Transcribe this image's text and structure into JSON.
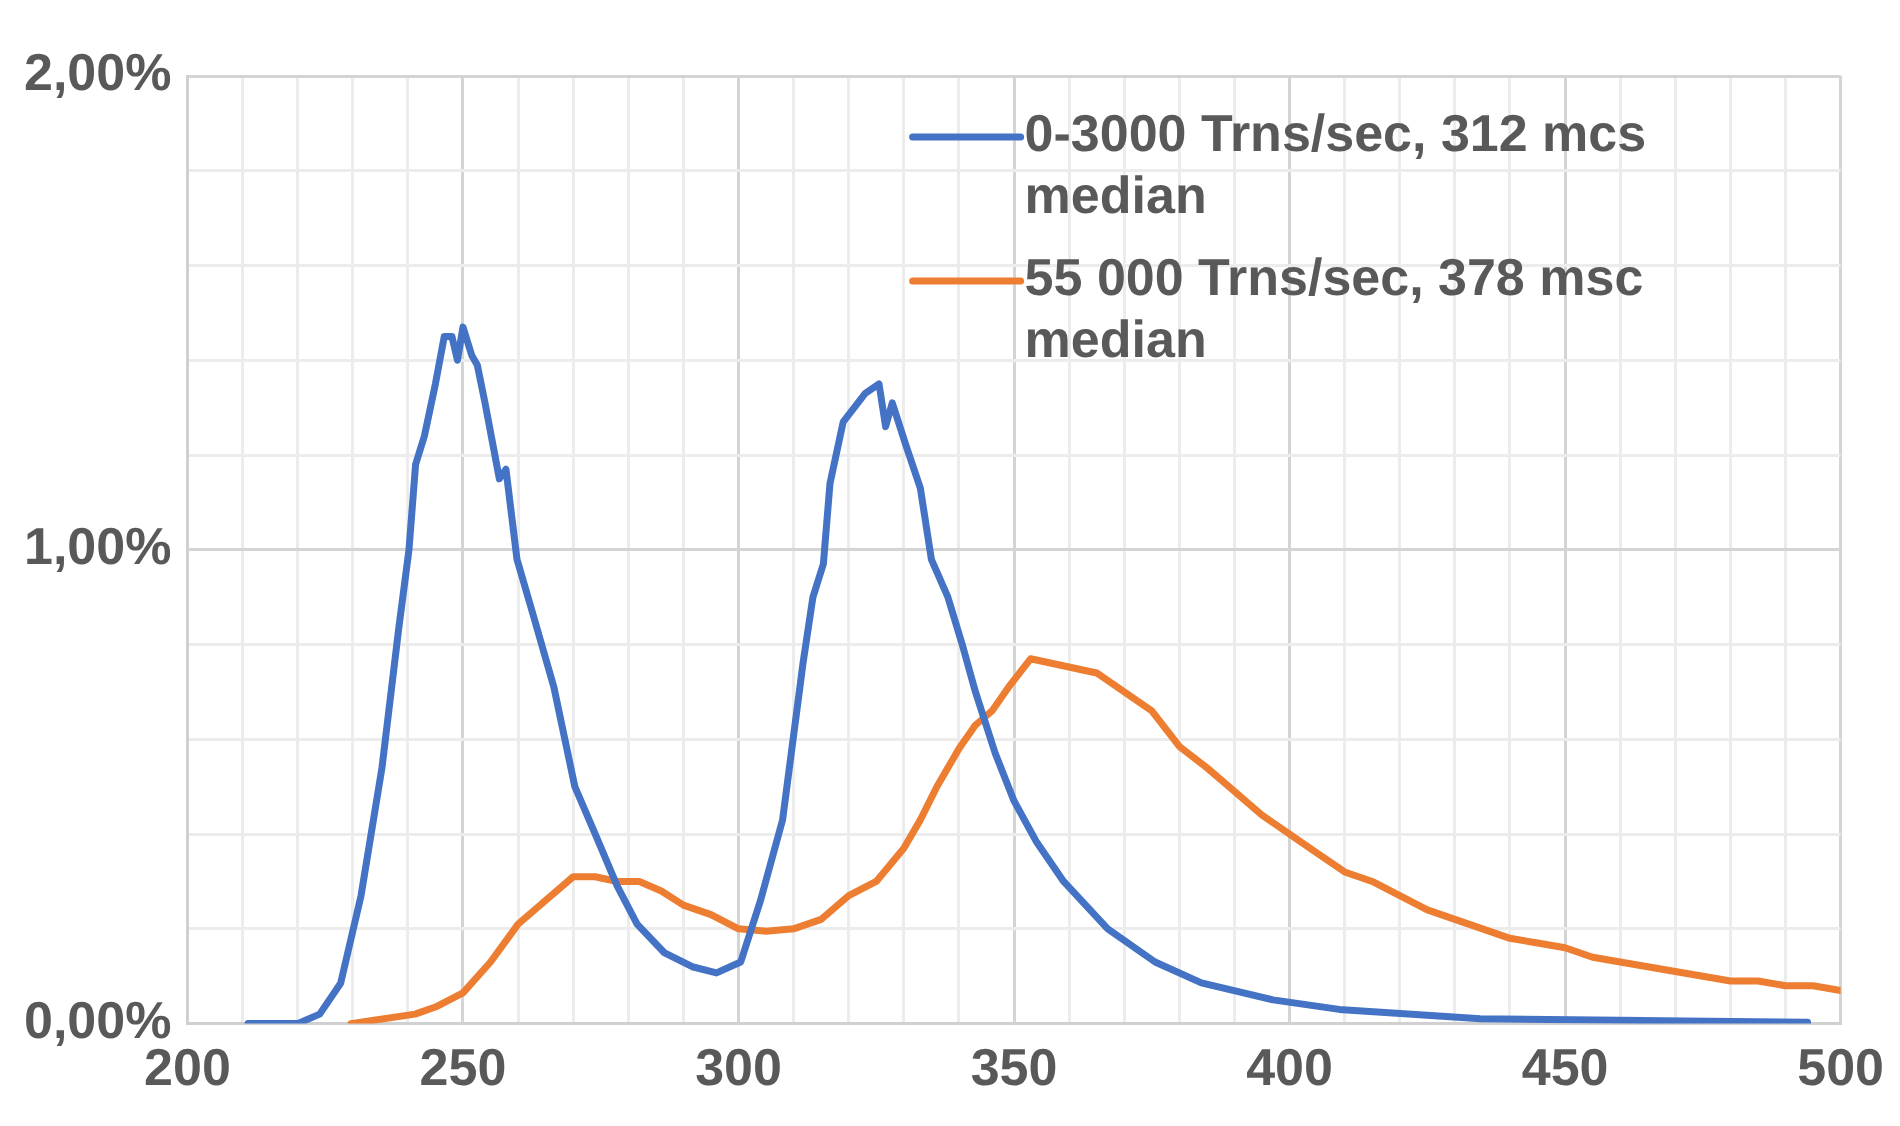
{
  "chart_data": {
    "type": "line",
    "xlim": [
      200,
      500
    ],
    "ylim": [
      0,
      2
    ],
    "xticks": [
      200,
      {
        "value": 210,
        "label": null
      },
      {
        "value": 220,
        "label": null
      },
      {
        "value": 230,
        "label": null
      },
      {
        "value": 240,
        "label": null
      },
      250,
      {
        "value": 260,
        "label": null
      },
      {
        "value": 270,
        "label": null
      },
      {
        "value": 280,
        "label": null
      },
      {
        "value": 290,
        "label": null
      },
      300,
      {
        "value": 310,
        "label": null
      },
      {
        "value": 320,
        "label": null
      },
      {
        "value": 330,
        "label": null
      },
      {
        "value": 340,
        "label": null
      },
      350,
      {
        "value": 360,
        "label": null
      },
      {
        "value": 370,
        "label": null
      },
      {
        "value": 380,
        "label": null
      },
      {
        "value": 390,
        "label": null
      },
      400,
      {
        "value": 410,
        "label": null
      },
      {
        "value": 420,
        "label": null
      },
      {
        "value": 430,
        "label": null
      },
      {
        "value": 440,
        "label": null
      },
      450,
      {
        "value": 460,
        "label": null
      },
      {
        "value": 470,
        "label": null
      },
      {
        "value": 480,
        "label": null
      },
      {
        "value": 490,
        "label": null
      },
      500
    ],
    "yticks": [
      {
        "value": 0,
        "label": "0,00%"
      },
      {
        "value": 0.2,
        "label": null
      },
      {
        "value": 0.4,
        "label": null
      },
      {
        "value": 0.6,
        "label": null
      },
      {
        "value": 0.8,
        "label": null
      },
      {
        "value": 1,
        "label": "1,00%"
      },
      {
        "value": 1.2,
        "label": null
      },
      {
        "value": 1.4,
        "label": null
      },
      {
        "value": 1.6,
        "label": null
      },
      {
        "value": 1.8,
        "label": null
      },
      {
        "value": 2,
        "label": "2,00%"
      }
    ],
    "grid": true,
    "legend": "top right",
    "marker": "none",
    "line_style": "solid",
    "series": [
      {
        "name": "0-3000 Trns/sec, 312 mcs median",
        "color": "#4472c4",
        "x": [
          211,
          220,
          224,
          227.8,
          231.5,
          235.3,
          238.3,
          240.2,
          241.4,
          243,
          245,
          246.6,
          248,
          249,
          250,
          251.6,
          252.6,
          254,
          256.6,
          257.8,
          259.8,
          262.8,
          266.5,
          270.3,
          274,
          278,
          281.6,
          286.5,
          291.6,
          296,
          300.4,
          304,
          308,
          311.7,
          313.5,
          315.4,
          316.6,
          319,
          323,
          325.5,
          326.7,
          327.9,
          330.4,
          333,
          335,
          338,
          340.6,
          343,
          346.6,
          350,
          354,
          359,
          367,
          375.6,
          384,
          397,
          409,
          434.6,
          494
        ],
        "values": [
          0,
          0,
          0.02,
          0.085,
          0.27,
          0.54,
          0.83,
          1.0,
          1.18,
          1.24,
          1.35,
          1.45,
          1.45,
          1.4,
          1.47,
          1.41,
          1.39,
          1.31,
          1.15,
          1.17,
          0.98,
          0.86,
          0.71,
          0.5,
          0.4,
          0.29,
          0.21,
          0.15,
          0.12,
          0.107,
          0.13,
          0.26,
          0.43,
          0.76,
          0.9,
          0.97,
          1.14,
          1.27,
          1.33,
          1.35,
          1.26,
          1.31,
          1.22,
          1.13,
          0.98,
          0.9,
          0.8,
          0.7,
          0.57,
          0.47,
          0.385,
          0.3,
          0.2,
          0.13,
          0.086,
          0.05,
          0.03,
          0.01,
          0.003
        ]
      },
      {
        "name": "55 000 Trns/sec, 378 msc median",
        "color": "#ed7d31",
        "x": [
          229.7,
          241.3,
          245,
          250,
          255,
          260,
          265,
          270,
          274,
          278,
          282,
          286,
          290,
          295,
          300,
          305,
          310,
          315,
          320,
          325,
          330,
          333,
          336,
          340,
          343,
          346,
          349,
          353,
          357,
          361,
          365,
          370,
          375,
          380,
          385,
          390,
          395,
          400,
          405,
          410,
          415,
          420,
          425,
          430,
          435,
          440,
          445,
          450,
          455,
          460,
          465,
          470,
          475,
          480,
          485,
          490,
          495,
          500
        ],
        "values": [
          0,
          0.02,
          0.035,
          0.065,
          0.13,
          0.21,
          0.26,
          0.31,
          0.31,
          0.3,
          0.3,
          0.28,
          0.25,
          0.23,
          0.2,
          0.195,
          0.2,
          0.22,
          0.27,
          0.3,
          0.37,
          0.43,
          0.5,
          0.58,
          0.63,
          0.66,
          0.71,
          0.77,
          0.76,
          0.75,
          0.74,
          0.7,
          0.66,
          0.585,
          0.54,
          0.49,
          0.44,
          0.4,
          0.36,
          0.32,
          0.3,
          0.27,
          0.24,
          0.22,
          0.2,
          0.18,
          0.17,
          0.16,
          0.14,
          0.13,
          0.12,
          0.11,
          0.1,
          0.09,
          0.09,
          0.08,
          0.08,
          0.07
        ]
      }
    ]
  }
}
